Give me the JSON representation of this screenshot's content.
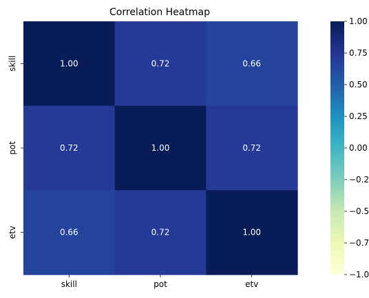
{
  "chart_data": {
    "type": "heatmap",
    "title": "Correlation Heatmap",
    "x_labels": [
      "skill",
      "pot",
      "etv"
    ],
    "y_labels": [
      "skill",
      "pot",
      "etv"
    ],
    "values": [
      [
        1.0,
        0.72,
        0.66
      ],
      [
        0.72,
        1.0,
        0.72
      ],
      [
        0.66,
        0.72,
        1.0
      ]
    ],
    "annotations": [
      [
        "1.00",
        "0.72",
        "0.66"
      ],
      [
        "0.72",
        "1.00",
        "0.72"
      ],
      [
        "0.66",
        "0.72",
        "1.00"
      ]
    ],
    "colormap": "YlGnBu",
    "vmin": -1.0,
    "vmax": 1.0,
    "colorbar_ticks": [
      1.0,
      0.75,
      0.5,
      0.25,
      0.0,
      -0.25,
      -0.5,
      -0.75,
      -1.0
    ],
    "colorbar_tick_labels": [
      "1.00",
      "0.75",
      "0.50",
      "0.25",
      "0.00",
      "−0.25",
      "−0.50",
      "−0.75",
      "−1.00"
    ],
    "annotation_color": "#ffffff",
    "grid": false,
    "legend": "colorbar-right"
  }
}
